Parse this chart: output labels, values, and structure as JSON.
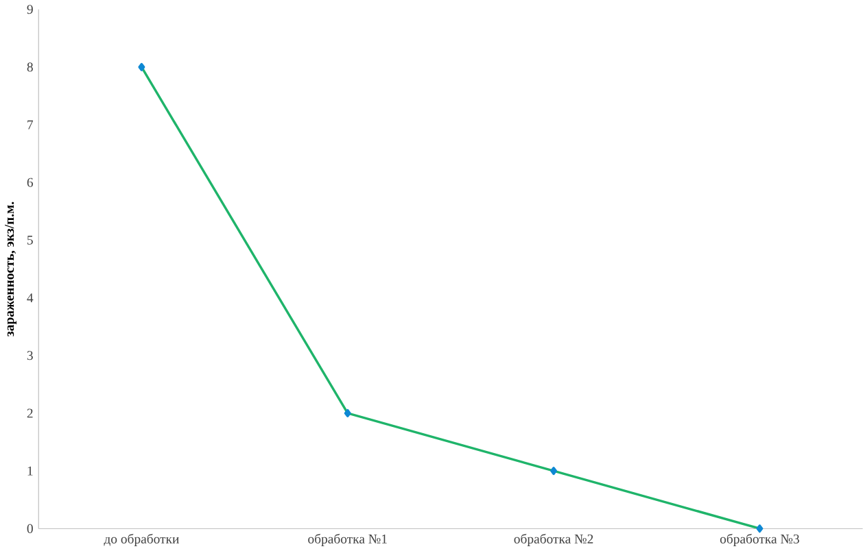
{
  "chart_data": {
    "type": "line",
    "ylabel": "зараженность, экз/п.м.",
    "categories": [
      "до обработки",
      "обработка №1",
      "обработка №2",
      "обработка №3"
    ],
    "series": [
      {
        "color": "#1fb46a",
        "values": [
          8,
          2,
          1,
          0
        ]
      }
    ],
    "ylim": [
      0,
      9
    ],
    "yticks": [
      0,
      1,
      2,
      3,
      4,
      5,
      6,
      7,
      8,
      9
    ],
    "grid": false,
    "marker": "diamond",
    "line_style": "solid"
  }
}
